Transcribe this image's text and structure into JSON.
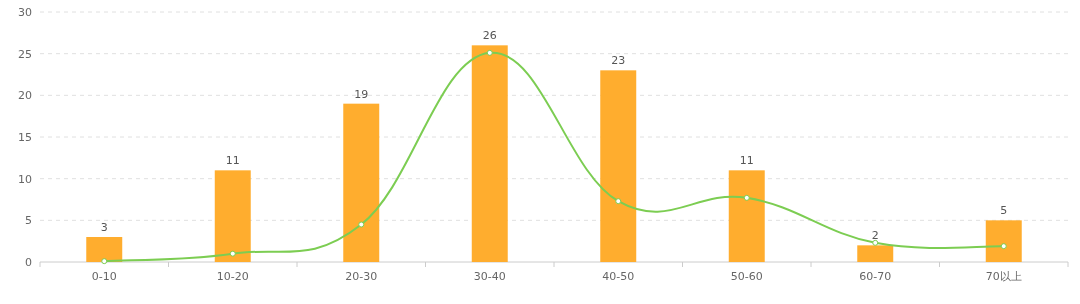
{
  "chart_data": {
    "type": "bar",
    "categories": [
      "0-10",
      "10-20",
      "20-30",
      "30-40",
      "40-50",
      "50-60",
      "60-70",
      "70以上"
    ],
    "series": [
      {
        "color": "#ffad2e",
        "values": [
          3,
          11,
          19,
          26,
          23,
          11,
          2,
          5
        ],
        "value_labels": [
          "3",
          "11",
          "19",
          "26",
          "23",
          "11",
          "2",
          "5"
        ]
      },
      {
        "type": "line",
        "color": "#7ccd52",
        "marker": "circle",
        "values": [
          0.1,
          1,
          4.5,
          25.1,
          7.3,
          7.7,
          2.3,
          1.9
        ]
      }
    ],
    "ylim": [
      0,
      30
    ],
    "yticks": [
      0,
      5,
      10,
      15,
      20,
      25,
      30
    ],
    "grid": "y"
  }
}
